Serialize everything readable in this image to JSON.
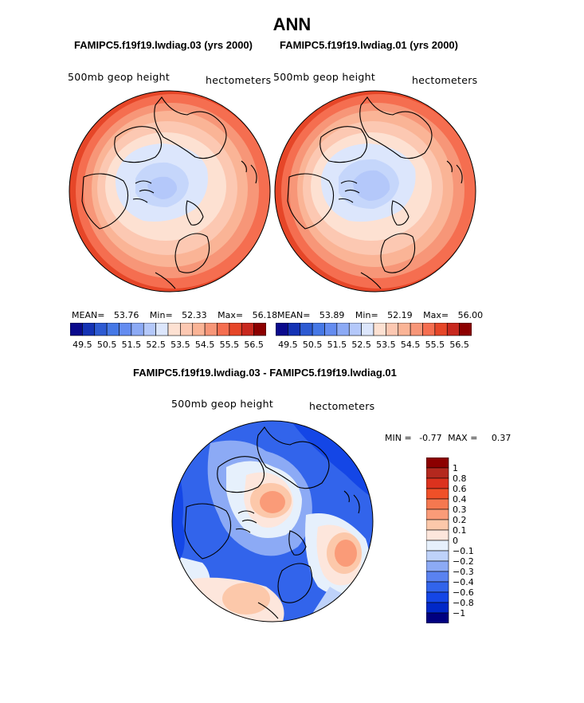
{
  "page": {
    "title": "ANN",
    "bottom_title": "FAMIPC5.f19f19.lwdiag.03 - FAMIPC5.f19f19.lwdiag.01"
  },
  "colors": {
    "abs_scale": [
      "#0a0a8c",
      "#1432b4",
      "#2d5ad2",
      "#4678e6",
      "#648cf0",
      "#8caaf5",
      "#b4c8fa",
      "#dce6fc",
      "#fde1d2",
      "#fcc8b2",
      "#fab496",
      "#f79678",
      "#f56e50",
      "#e64628",
      "#c8281e",
      "#8c0000"
    ],
    "diff_scale": [
      "#000080",
      "#0028c8",
      "#1446e6",
      "#3264eb",
      "#5a82f0",
      "#8caaf5",
      "#bed2fa",
      "#e6f0fc",
      "#fde6dc",
      "#fcc8aa",
      "#fa9b78",
      "#f57850",
      "#f05028",
      "#dc321e",
      "#b4281e",
      "#8c0000"
    ]
  },
  "chart_data": [
    {
      "type": "heatmap",
      "panel": "left",
      "title": "FAMIPC5.f19f19.lwdiag.03 (yrs 2000)",
      "variable_label": "500mb geop height",
      "units_label": "hectometers",
      "stats_text": {
        "mean_label": "MEAN=",
        "mean": "53.76",
        "min_label": "Min=",
        "min": "52.33",
        "max_label": "Max=",
        "max": "56.18"
      },
      "colorbar_labels": [
        "49.5",
        "50.5",
        "51.5",
        "52.5",
        "53.5",
        "54.5",
        "55.5",
        "56.5"
      ],
      "projection": "polar-stereographic-north",
      "range": [
        49.5,
        56.5
      ]
    },
    {
      "type": "heatmap",
      "panel": "right",
      "title": "FAMIPC5.f19f19.lwdiag.01 (yrs 2000)",
      "variable_label": "500mb geop height",
      "units_label": "hectometers",
      "stats_text": {
        "mean_label": "MEAN=",
        "mean": "53.89",
        "min_label": "Min=",
        "min": "52.19",
        "max_label": "Max=",
        "max": "56.00"
      },
      "colorbar_labels": [
        "49.5",
        "50.5",
        "51.5",
        "52.5",
        "53.5",
        "54.5",
        "55.5",
        "56.5"
      ],
      "projection": "polar-stereographic-north",
      "range": [
        49.5,
        56.5
      ]
    },
    {
      "type": "heatmap",
      "panel": "difference",
      "title": "FAMIPC5.f19f19.lwdiag.03 - FAMIPC5.f19f19.lwdiag.01",
      "variable_label": "500mb geop height",
      "units_label": "hectometers",
      "stats_text": {
        "min_label": "MIN =",
        "min": "-0.77",
        "max_label": "MAX =",
        "max": "0.37"
      },
      "colorbar_labels": [
        "1",
        "0.8",
        "0.6",
        "0.4",
        "0.3",
        "0.2",
        "0.1",
        "0",
        "−0.1",
        "−0.2",
        "−0.3",
        "−0.4",
        "−0.6",
        "−0.8",
        "−1"
      ],
      "projection": "polar-stereographic-north",
      "range": [
        -1,
        1
      ]
    }
  ]
}
